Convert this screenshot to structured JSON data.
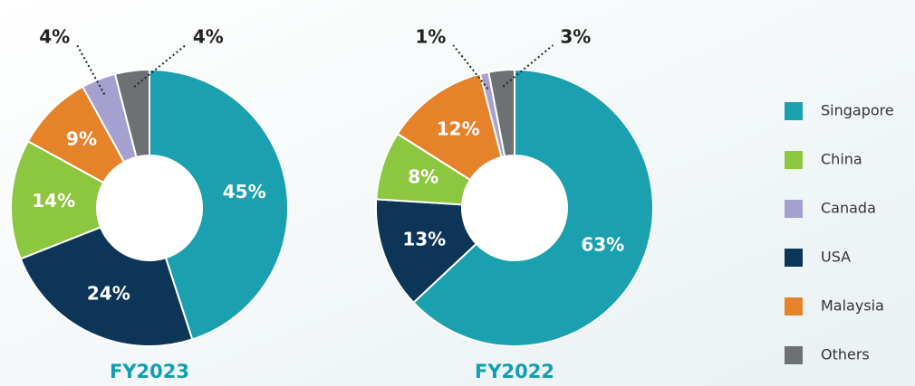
{
  "chart_data": [
    {
      "type": "pie",
      "title": "FY2023",
      "categories": [
        "Singapore",
        "USA",
        "China",
        "Malaysia",
        "Canada",
        "Others"
      ],
      "values": [
        45,
        24,
        14,
        9,
        4,
        4
      ],
      "colors": [
        "#1aa0ae",
        "#0c3558",
        "#8dc63f",
        "#e5822a",
        "#a5a0d0",
        "#6d7174"
      ]
    },
    {
      "type": "pie",
      "title": "FY2022",
      "categories": [
        "Singapore",
        "USA",
        "China",
        "Malaysia",
        "Canada",
        "Others"
      ],
      "values": [
        63,
        13,
        8,
        12,
        1,
        3
      ],
      "colors": [
        "#1aa0ae",
        "#0c3558",
        "#8dc63f",
        "#e5822a",
        "#a5a0d0",
        "#6d7174"
      ]
    }
  ],
  "value_labels": [
    [
      "45%",
      "24%",
      "14%",
      "9%",
      "4%",
      "4%"
    ],
    [
      "63%",
      "13%",
      "8%",
      "12%",
      "1%",
      "3%"
    ]
  ],
  "legend": [
    {
      "name": "Singapore",
      "color": "#1aa0ae"
    },
    {
      "name": "China",
      "color": "#8dc63f"
    },
    {
      "name": "Canada",
      "color": "#a5a0d0"
    },
    {
      "name": "USA",
      "color": "#0c3558"
    },
    {
      "name": "Malaysia",
      "color": "#e5822a"
    },
    {
      "name": "Others",
      "color": "#6d7174"
    }
  ]
}
